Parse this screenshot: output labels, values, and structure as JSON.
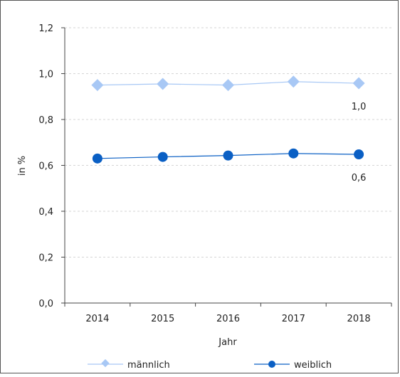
{
  "chart_data": {
    "type": "line",
    "categories": [
      "2014",
      "2015",
      "2016",
      "2017",
      "2018"
    ],
    "xlabel": "Jahr",
    "ylabel": "in %",
    "ylim": [
      0,
      1.2
    ],
    "yticks": [
      "0,0",
      "0,2",
      "0,4",
      "0,6",
      "0,8",
      "1,0",
      "1,2"
    ],
    "grid": "horizontal-dashed",
    "legend_position": "bottom",
    "series": [
      {
        "name": "männlich",
        "values": [
          0.95,
          0.955,
          0.95,
          0.965,
          0.958
        ],
        "color": "#a8c8f5",
        "marker": "diamond",
        "end_label": "1,0"
      },
      {
        "name": "weiblich",
        "values": [
          0.63,
          0.637,
          0.643,
          0.652,
          0.648
        ],
        "color": "#0a5fc4",
        "marker": "circle",
        "end_label": "0,6"
      }
    ]
  }
}
